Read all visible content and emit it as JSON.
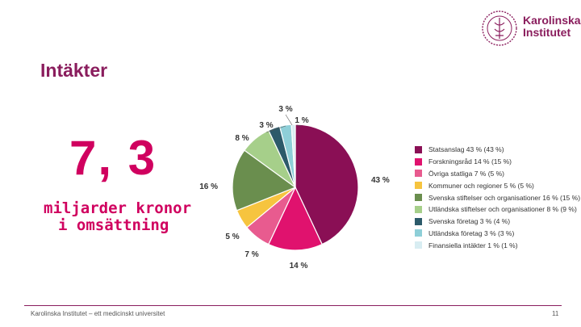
{
  "slide": {
    "title": "Intäkter",
    "big_number": "7, 3",
    "subtitle_line1": "miljarder kronor",
    "subtitle_line2": "i omsättning",
    "footer": "Karolinska Institutet – ett medicinskt universitet",
    "page_number": "11"
  },
  "logo": {
    "line1": "Karolinska",
    "line2": "Institutet",
    "icon": "karolinska-seal-icon",
    "color": "#8a1d5d"
  },
  "chart_data": {
    "type": "pie",
    "title": "",
    "categories": [
      "Statsanslag 43 % (43 %)",
      "Forskningsråd 14 % (15 %)",
      "Övriga statliga 7 % (5 %)",
      "Kommuner och regioner 5 % (5 %)",
      "Svenska stiftelser och organisationer 16 % (15 %)",
      "Utländska stiftelser och organisationer 8 % (9 %)",
      "Svenska företag 3 % (4 %)",
      "Utländska företag 3 % (3 %)",
      "Finansiella intäkter 1 % (1 %)"
    ],
    "values": [
      43,
      14,
      7,
      5,
      16,
      8,
      3,
      3,
      1
    ],
    "slice_labels": [
      "43 %",
      "14 %",
      "7 %",
      "5 %",
      "16 %",
      "8 %",
      "3 %",
      "3 %",
      "1 %"
    ],
    "colors": [
      "#8a0f55",
      "#e0126e",
      "#e85b8f",
      "#f6c43f",
      "#6a8e4e",
      "#a6cf8a",
      "#2c5a6a",
      "#8ecfd8",
      "#d8edf2"
    ],
    "legend_position": "right"
  }
}
